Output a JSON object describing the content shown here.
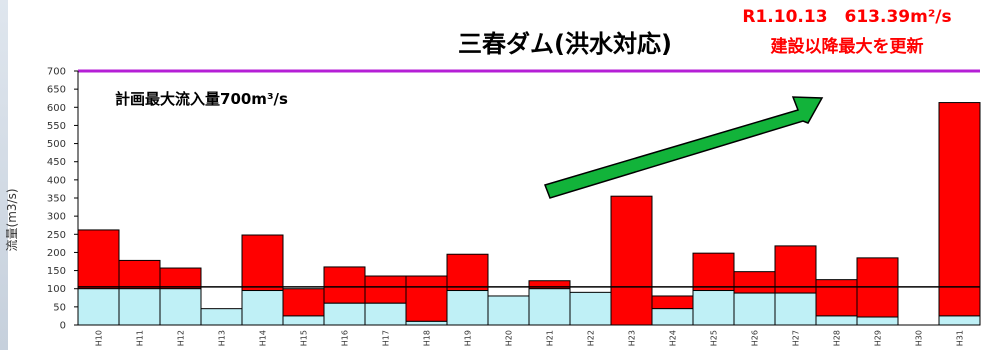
{
  "chart_data": {
    "type": "bar",
    "title": "三春ダム(洪水対応)",
    "highlight": {
      "line1": "R1.10.13　613.39m²/s",
      "line2": "建設以降最大を更新",
      "color": "#ff0000"
    },
    "ylabel": "流量(m3/s)",
    "ylim": [
      0,
      700
    ],
    "yticks": [
      0,
      50,
      100,
      150,
      200,
      250,
      300,
      350,
      400,
      450,
      500,
      550,
      600,
      650,
      700
    ],
    "planned_max": {
      "value": 700,
      "label": "計画最大流入量700m³/s",
      "color": "#b51fd6"
    },
    "threshold": {
      "value": 105
    },
    "categories": [
      "H10",
      "H11",
      "H12",
      "H13",
      "H14",
      "H15",
      "H16",
      "H17",
      "H18",
      "H19",
      "H20",
      "H21",
      "H22",
      "H23",
      "H24",
      "H25",
      "H26",
      "H27",
      "H28",
      "H29",
      "H30",
      "H31"
    ],
    "series": [
      {
        "color": "#bff0f6",
        "values": [
          100,
          100,
          100,
          45,
          95,
          25,
          60,
          60,
          10,
          95,
          80,
          100,
          90,
          0,
          45,
          95,
          88,
          88,
          25,
          22,
          0,
          25
        ]
      },
      {
        "color": "#ff0000",
        "values": [
          262,
          178,
          157,
          45,
          248,
          100,
          160,
          135,
          135,
          195,
          80,
          122,
          90,
          355,
          80,
          198,
          147,
          218,
          125,
          185,
          0,
          613
        ]
      }
    ],
    "grid": false
  }
}
